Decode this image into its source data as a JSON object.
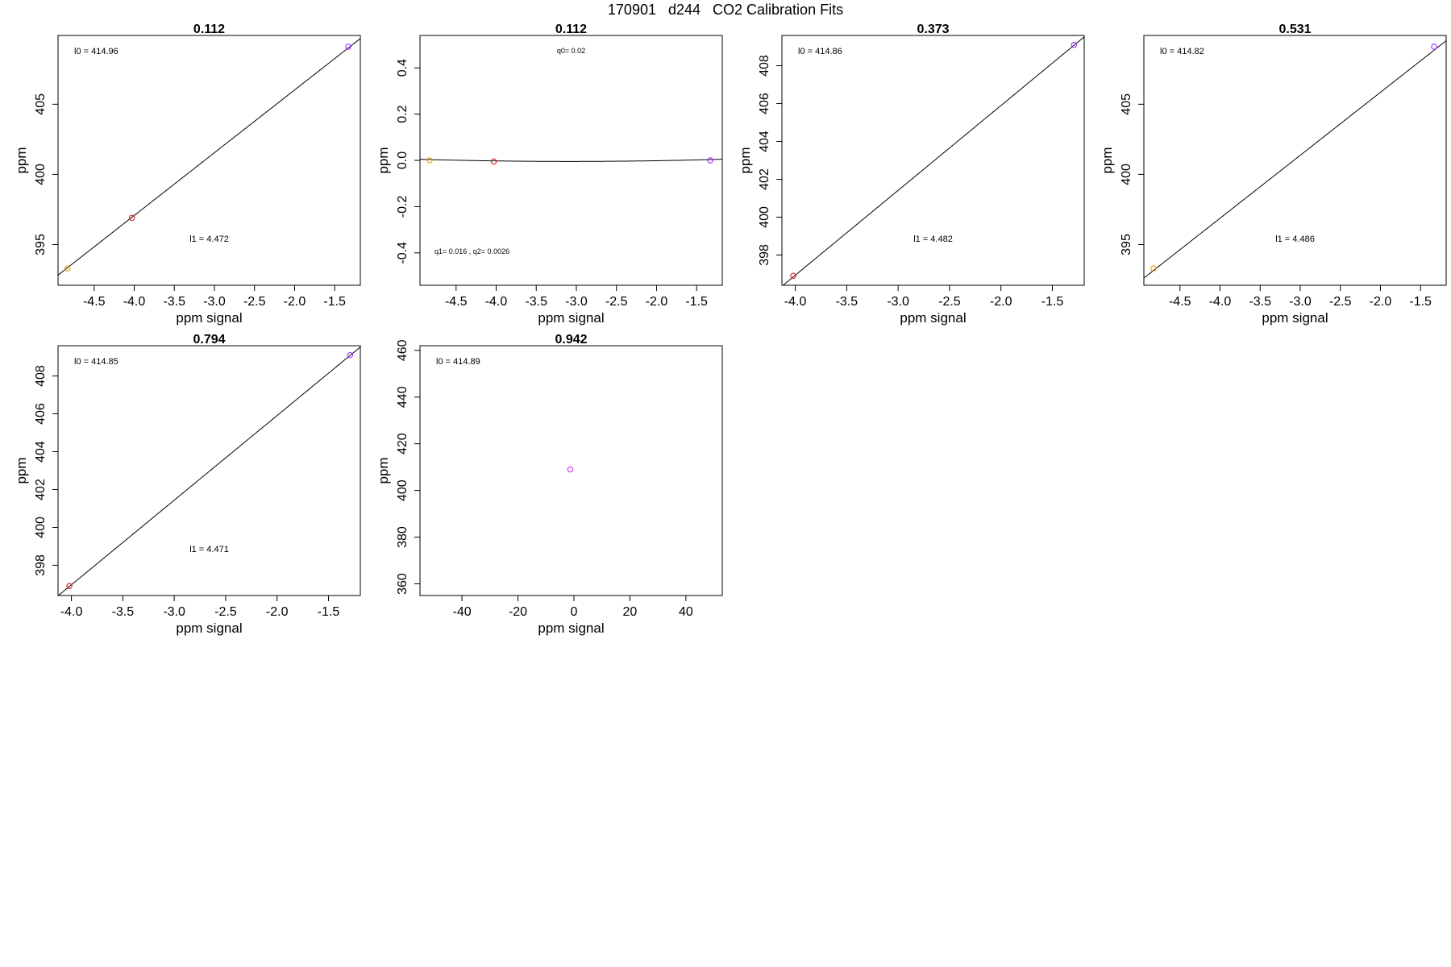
{
  "page": {
    "title": "170901   d244   CO2 Calibration Fits"
  },
  "chart_data": [
    {
      "type": "scatter",
      "title": "0.112",
      "xlabel": "ppm signal",
      "ylabel": "ppm",
      "xlim": [
        -4.95,
        -1.18
      ],
      "ylim": [
        392.1,
        409.9
      ],
      "xticks": [
        -4.5,
        -4.0,
        -3.5,
        -3.0,
        -2.5,
        -2.0,
        -1.5
      ],
      "yticks": [
        395,
        400,
        405
      ],
      "points": [
        {
          "x": -4.83,
          "y": 393.3,
          "color": "#e69f00"
        },
        {
          "x": -4.03,
          "y": 396.9,
          "color": "#e41a1c"
        },
        {
          "x": -1.33,
          "y": 409.1,
          "color": "#9b30ff"
        }
      ],
      "fit_line": {
        "kind": "linear",
        "intercept": 414.96,
        "slope": 4.472
      },
      "annotations": [
        {
          "text": "l0 =  414.96",
          "pos": "top-left"
        },
        {
          "text": "l1 =  4.472",
          "pos": "lower-middle"
        }
      ]
    },
    {
      "type": "scatter",
      "title": "0.112",
      "xlabel": "ppm signal",
      "ylabel": "ppm",
      "xlim": [
        -4.95,
        -1.18
      ],
      "ylim": [
        -0.54,
        0.54
      ],
      "xticks": [
        -4.5,
        -4.0,
        -3.5,
        -3.0,
        -2.5,
        -2.0,
        -1.5
      ],
      "yticks": [
        -0.4,
        -0.2,
        0.0,
        0.2,
        0.4
      ],
      "points": [
        {
          "x": -4.83,
          "y": 0.0,
          "color": "#e69f00"
        },
        {
          "x": -4.03,
          "y": -0.005,
          "color": "#e41a1c"
        },
        {
          "x": -1.33,
          "y": 0.0,
          "color": "#9b30ff"
        }
      ],
      "fit_line": {
        "kind": "quadratic",
        "q0": 0.02,
        "q1": 0.016,
        "q2": 0.0026
      },
      "annotations": [
        {
          "text": "q0= 0.02",
          "pos": "top-middle"
        },
        {
          "text": "q1= 0.016 , q2= 0.0026",
          "pos": "bottom-left"
        }
      ]
    },
    {
      "type": "scatter",
      "title": "0.373",
      "xlabel": "ppm signal",
      "ylabel": "ppm",
      "xlim": [
        -4.13,
        -1.19
      ],
      "ylim": [
        396.4,
        409.6
      ],
      "xticks": [
        -4.0,
        -3.5,
        -3.0,
        -2.5,
        -2.0,
        -1.5
      ],
      "yticks": [
        398,
        400,
        402,
        404,
        406,
        408
      ],
      "points": [
        {
          "x": -4.02,
          "y": 396.9,
          "color": "#e41a1c"
        },
        {
          "x": -1.29,
          "y": 409.1,
          "color": "#9b30ff"
        }
      ],
      "fit_line": {
        "kind": "linear",
        "intercept": 414.86,
        "slope": 4.482
      },
      "annotations": [
        {
          "text": "l0 =  414.86",
          "pos": "top-left"
        },
        {
          "text": "l1 =  4.482",
          "pos": "lower-middle"
        }
      ]
    },
    {
      "type": "scatter",
      "title": "0.531",
      "xlabel": "ppm signal",
      "ylabel": "ppm",
      "xlim": [
        -4.95,
        -1.18
      ],
      "ylim": [
        392.1,
        409.9
      ],
      "xticks": [
        -4.5,
        -4.0,
        -3.5,
        -3.0,
        -2.5,
        -2.0,
        -1.5
      ],
      "yticks": [
        395,
        400,
        405
      ],
      "points": [
        {
          "x": -4.83,
          "y": 393.3,
          "color": "#e69f00"
        },
        {
          "x": -1.33,
          "y": 409.1,
          "color": "#9b30ff"
        }
      ],
      "fit_line": {
        "kind": "linear",
        "intercept": 414.82,
        "slope": 4.486
      },
      "annotations": [
        {
          "text": "l0 =  414.82",
          "pos": "top-left"
        },
        {
          "text": "l1 =  4.486",
          "pos": "lower-middle"
        }
      ]
    },
    {
      "type": "scatter",
      "title": "0.794",
      "xlabel": "ppm signal",
      "ylabel": "ppm",
      "xlim": [
        -4.13,
        -1.19
      ],
      "ylim": [
        396.4,
        409.6
      ],
      "xticks": [
        -4.0,
        -3.5,
        -3.0,
        -2.5,
        -2.0,
        -1.5
      ],
      "yticks": [
        398,
        400,
        402,
        404,
        406,
        408
      ],
      "points": [
        {
          "x": -4.02,
          "y": 396.9,
          "color": "#e41a1c"
        },
        {
          "x": -1.29,
          "y": 409.1,
          "color": "#9b30ff"
        }
      ],
      "fit_line": {
        "kind": "linear",
        "intercept": 414.85,
        "slope": 4.471
      },
      "annotations": [
        {
          "text": "l0 =  414.85",
          "pos": "top-left"
        },
        {
          "text": "l1 =  4.471",
          "pos": "lower-middle"
        }
      ]
    },
    {
      "type": "scatter",
      "title": "0.942",
      "xlabel": "ppm signal",
      "ylabel": "ppm",
      "xlim": [
        -55,
        53
      ],
      "ylim": [
        355,
        462
      ],
      "xticks": [
        -40,
        -20,
        0,
        20,
        40
      ],
      "yticks": [
        360,
        380,
        400,
        420,
        440,
        460
      ],
      "points": [
        {
          "x": -1.3,
          "y": 409.0,
          "color": "#cc33ff"
        }
      ],
      "annotations": [
        {
          "text": "l0 =  414.89",
          "pos": "top-left"
        }
      ]
    }
  ]
}
